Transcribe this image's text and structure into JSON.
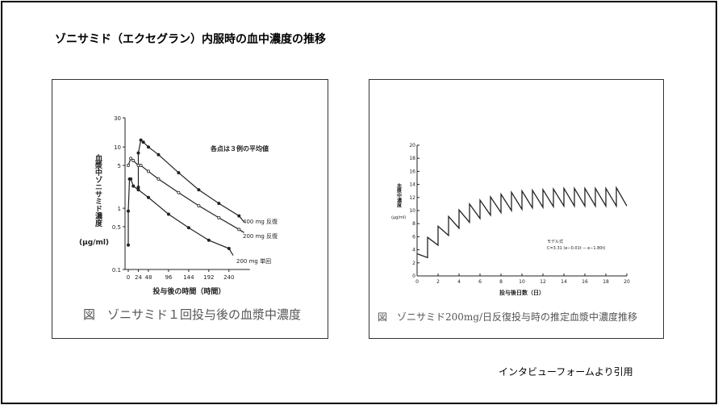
{
  "slide": {
    "title": "ゾニサミド（エクセグラン）内服時の血中濃度の推移",
    "footer": "インタビューフォームより引用"
  },
  "chart_data": [
    {
      "type": "line",
      "caption": "図　ゾニサミド１回投与後の血漿中濃度",
      "xlabel": "投与後の時間（時間）",
      "ylabel": "血漿中ゾニサミド濃度",
      "yunit": "(μg/ml)",
      "annotation": "各点は３例の平均値",
      "yscale": "log",
      "xlim": [
        0,
        290
      ],
      "ylim": [
        0.1,
        30
      ],
      "xticks": [
        "0",
        "24",
        "48",
        "96",
        "144",
        "192",
        "240"
      ],
      "yticks": [
        "0.1",
        "0.5",
        "1",
        "5",
        "10",
        "30"
      ],
      "series": [
        {
          "name": "400 mg 反復",
          "marker": "filled",
          "points": [
            [
              24,
              2.2
            ],
            [
              24,
              8
            ],
            [
              30,
              13
            ],
            [
              36,
              12
            ],
            [
              48,
              10
            ],
            [
              72,
              7.5
            ],
            [
              120,
              3.8
            ],
            [
              168,
              2.0
            ],
            [
              216,
              1.2
            ],
            [
              264,
              0.75
            ],
            [
              276,
              0.6
            ]
          ]
        },
        {
          "name": "200 mg 反復",
          "marker": "open",
          "points": [
            [
              0,
              5
            ],
            [
              6,
              6.5
            ],
            [
              12,
              6
            ],
            [
              24,
              5
            ],
            [
              30,
              5
            ],
            [
              48,
              4
            ],
            [
              72,
              3
            ],
            [
              120,
              1.8
            ],
            [
              168,
              1.1
            ],
            [
              216,
              0.7
            ],
            [
              264,
              0.45
            ],
            [
              276,
              0.4
            ]
          ]
        },
        {
          "name": "200 mg 単回",
          "marker": "filled",
          "points": [
            [
              0,
              0.25
            ],
            [
              0,
              0.9
            ],
            [
              3,
              3
            ],
            [
              6,
              3
            ],
            [
              12,
              2.3
            ],
            [
              24,
              2
            ],
            [
              48,
              1.5
            ],
            [
              96,
              0.8
            ],
            [
              144,
              0.48
            ],
            [
              192,
              0.3
            ],
            [
              240,
              0.22
            ],
            [
              250,
              0.17
            ]
          ]
        }
      ]
    },
    {
      "type": "line",
      "caption": "図　ゾニサミド200mg/日反復投与時の推定血漿中濃度推移",
      "xlabel": "投与後日数（日）",
      "ylabel": "血漿中濃度",
      "yunit": "(μg/ml)",
      "model_label": "モデル式",
      "model_formula": "C=3.31 (e−0.01t − e−1.80t)",
      "xlim": [
        0,
        20
      ],
      "ylim": [
        0,
        20
      ],
      "xticks": [
        "0",
        "2",
        "4",
        "6",
        "8",
        "10",
        "12",
        "14",
        "16",
        "18",
        "20"
      ],
      "yticks": [
        "0",
        "2",
        "4",
        "6",
        "8",
        "10",
        "12",
        "14",
        "16",
        "18",
        "20"
      ],
      "troughs": [
        2.8,
        4.7,
        6.2,
        7.3,
        8.2,
        8.8,
        9.3,
        9.7,
        10.0,
        10.2,
        10.4,
        10.5,
        10.6,
        10.7,
        10.7,
        10.7,
        10.7,
        10.7,
        10.7,
        10.7
      ],
      "peaks": [
        3.4,
        5.9,
        7.6,
        9.1,
        10.1,
        11.0,
        11.6,
        12.1,
        12.5,
        12.8,
        13.0,
        13.1,
        13.2,
        13.3,
        13.4,
        13.4,
        13.4,
        13.4,
        13.4,
        13.5
      ]
    }
  ]
}
